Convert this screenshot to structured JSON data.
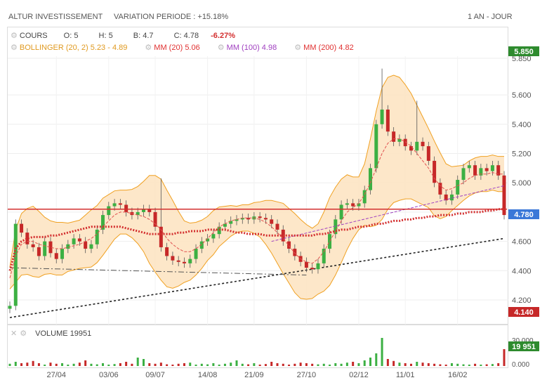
{
  "header": {
    "title": "ALTUR INVESTISSEMENT",
    "variation": "VARIATION PERIODE : +15.18%",
    "period": "1 AN - JOUR"
  },
  "legend": {
    "cours": {
      "label": "COURS",
      "o": "O: 5",
      "h": "H: 5",
      "b": "B: 4.7",
      "c": "C: 4.78",
      "change": "-6.27%"
    },
    "bollinger": {
      "label": "BOLLINGER (20, 2)",
      "value": "5.23 - 4.89",
      "color": "#f0a020"
    },
    "mm20": {
      "label": "MM (20)",
      "value": "5.06",
      "color": "#e03030"
    },
    "mm100": {
      "label": "MM (100)",
      "value": "4.98",
      "color": "#a040c0"
    },
    "mm200": {
      "label": "MM (200)",
      "value": "4.82",
      "color": "#e03030"
    }
  },
  "badges": {
    "high": {
      "text": "5.850",
      "color": "#2e8b2e"
    },
    "last": {
      "text": "4.780",
      "color": "#3a78d8"
    },
    "low": {
      "text": "4.140",
      "color": "#c62828"
    },
    "volume": {
      "text": "19 951",
      "color": "#2e8b2e"
    }
  },
  "volume_panel": {
    "label": "VOLUME",
    "value": "19951",
    "ticks": [
      "30.000",
      "0.000"
    ]
  },
  "chart_data": {
    "type": "candlestick",
    "y_ticks": [
      "5.850",
      "5.600",
      "5.400",
      "5.200",
      "5.000",
      "4.800",
      "4.600",
      "4.400",
      "4.200"
    ],
    "x_ticks": [
      "27/04",
      "03/06",
      "09/07",
      "14/08",
      "21/09",
      "27/10",
      "02/12",
      "11/01",
      "16/02"
    ],
    "ylim": [
      4.1,
      5.9
    ],
    "colors": {
      "up": "#3cb043",
      "down": "#c62828",
      "band": "#fde3c0",
      "band_edge": "#f0a020"
    },
    "close": [
      4.16,
      4.72,
      4.66,
      4.58,
      4.56,
      4.5,
      4.6,
      4.52,
      4.48,
      4.55,
      4.58,
      4.62,
      4.6,
      4.55,
      4.58,
      4.68,
      4.78,
      4.84,
      4.86,
      4.85,
      4.8,
      4.78,
      4.8,
      4.82,
      4.8,
      4.7,
      4.56,
      4.5,
      4.47,
      4.46,
      4.45,
      4.48,
      4.55,
      4.6,
      4.62,
      4.65,
      4.7,
      4.72,
      4.74,
      4.75,
      4.76,
      4.75,
      4.77,
      4.76,
      4.75,
      4.72,
      4.68,
      4.6,
      4.55,
      4.5,
      4.46,
      4.42,
      4.41,
      4.45,
      4.55,
      4.65,
      4.75,
      4.85,
      4.86,
      4.84,
      4.86,
      4.95,
      5.1,
      5.4,
      5.5,
      5.35,
      5.28,
      5.3,
      5.25,
      5.22,
      5.28,
      5.25,
      5.15,
      5.0,
      4.92,
      4.88,
      4.92,
      5.02,
      5.1,
      5.12,
      5.05,
      5.1,
      5.08,
      5.12,
      5.05,
      4.78
    ],
    "ma20": [
      4.35,
      4.5,
      4.58,
      4.6,
      4.6,
      4.58,
      4.57,
      4.56,
      4.55,
      4.55,
      4.56,
      4.57,
      4.58,
      4.6,
      4.62,
      4.65,
      4.7,
      4.74,
      4.78,
      4.8,
      4.8,
      4.79,
      4.78,
      4.77,
      4.75,
      4.72,
      4.68,
      4.62,
      4.58,
      4.55,
      4.53,
      4.53,
      4.55,
      4.58,
      4.62,
      4.66,
      4.7,
      4.72,
      4.74,
      4.75,
      4.76,
      4.76,
      4.76,
      4.75,
      4.73,
      4.7,
      4.66,
      4.62,
      4.57,
      4.52,
      4.48,
      4.46,
      4.45,
      4.48,
      4.53,
      4.6,
      4.67,
      4.74,
      4.8,
      4.83,
      4.86,
      4.92,
      5.0,
      5.1,
      5.2,
      5.27,
      5.3,
      5.3,
      5.28,
      5.25,
      5.2,
      5.15,
      5.1,
      5.03,
      4.98,
      4.95,
      4.96,
      4.98,
      5.0,
      5.03,
      5.05,
      5.06,
      5.06,
      5.07,
      5.06,
      5.06
    ],
    "ma200": [
      4.4,
      4.55,
      4.6,
      4.62,
      4.63,
      4.63,
      4.63,
      4.64,
      4.64,
      4.65,
      4.66,
      4.67,
      4.68,
      4.69,
      4.7,
      4.7,
      4.7,
      4.7,
      4.7,
      4.7,
      4.69,
      4.68,
      4.67,
      4.66,
      4.65,
      4.65,
      4.65,
      4.65,
      4.65,
      4.66,
      4.66,
      4.67,
      4.67,
      4.67,
      4.68,
      4.68,
      4.68,
      4.68,
      4.67,
      4.66,
      4.66,
      4.65,
      4.65,
      4.65,
      4.64,
      4.64,
      4.64,
      4.64,
      4.64,
      4.64,
      4.64,
      4.64,
      4.64,
      4.65,
      4.65,
      4.66,
      4.67,
      4.68,
      4.68,
      4.69,
      4.7,
      4.7,
      4.71,
      4.72,
      4.72,
      4.73,
      4.74,
      4.74,
      4.75,
      4.75,
      4.76,
      4.76,
      4.77,
      4.77,
      4.78,
      4.78,
      4.78,
      4.79,
      4.79,
      4.8,
      4.8,
      4.8,
      4.81,
      4.81,
      4.82,
      4.82
    ],
    "ma100_start": 45,
    "ma100_end": [
      4.6,
      4.98
    ],
    "resistance": 4.82,
    "trend_support": [
      [
        0,
        4.08
      ],
      [
        85,
        4.62
      ]
    ],
    "trend_old": [
      [
        0,
        4.42
      ],
      [
        51,
        4.37
      ]
    ],
    "volume": [
      0.08,
      0.15,
      0.1,
      0.12,
      0.18,
      0.1,
      0.05,
      0.12,
      0.08,
      0.1,
      0.05,
      0.08,
      0.12,
      0.2,
      0.08,
      0.06,
      0.1,
      0.05,
      0.07,
      0.1,
      0.15,
      0.08,
      0.3,
      0.25,
      0.1,
      0.08,
      0.12,
      0.06,
      0.05,
      0.08,
      0.1,
      0.12,
      0.05,
      0.08,
      0.06,
      0.1,
      0.05,
      0.08,
      0.12,
      0.2,
      0.08,
      0.06,
      0.1,
      0.05,
      0.07,
      0.15,
      0.1,
      0.08,
      0.05,
      0.08,
      0.12,
      0.1,
      0.08,
      0.06,
      0.08,
      0.05,
      0.1,
      0.08,
      0.12,
      0.15,
      0.1,
      0.2,
      0.3,
      0.45,
      1.0,
      0.25,
      0.18,
      0.12,
      0.1,
      0.08,
      0.15,
      0.12,
      0.1,
      0.08,
      0.06,
      0.05,
      0.1,
      0.08,
      0.06,
      0.05,
      0.08,
      0.05,
      0.06,
      0.07,
      0.1,
      0.6
    ]
  }
}
